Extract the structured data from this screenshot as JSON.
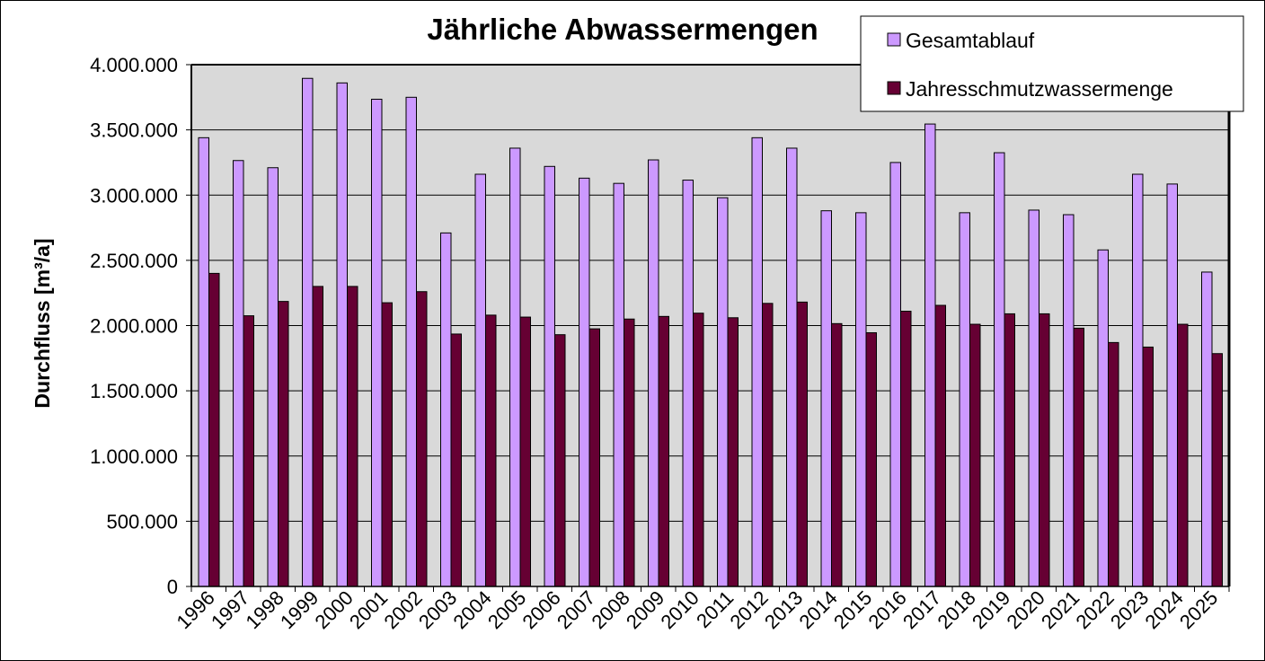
{
  "chart_data": {
    "type": "bar",
    "title": "Jährliche Abwassermengen",
    "xlabel": "",
    "ylabel": "Durchfluss  [m³/a]",
    "ylim": [
      0,
      4000000
    ],
    "yticks": [
      "0",
      "500.000",
      "1.000.000",
      "1.500.000",
      "2.000.000",
      "2.500.000",
      "3.000.000",
      "3.500.000",
      "4.000.000"
    ],
    "grid": true,
    "legend_position": "top-right",
    "categories": [
      "1996",
      "1997",
      "1998",
      "1999",
      "2000",
      "2001",
      "2002",
      "2003",
      "2004",
      "2005",
      "2006",
      "2007",
      "2008",
      "2009",
      "2010",
      "2011",
      "2012",
      "2013",
      "2014",
      "2015",
      "2016",
      "2017",
      "2018",
      "2019",
      "2020",
      "2021",
      "2022",
      "2023",
      "2024",
      "2025"
    ],
    "series": [
      {
        "name": "Gesamtablauf",
        "color": "#CC99FF",
        "values": [
          3440000,
          3265000,
          3210000,
          3895000,
          3860000,
          3735000,
          3750000,
          2710000,
          3160000,
          3360000,
          3220000,
          3130000,
          3090000,
          3270000,
          3115000,
          2980000,
          3440000,
          3360000,
          2880000,
          2865000,
          3250000,
          3545000,
          2865000,
          3325000,
          2885000,
          2850000,
          2580000,
          3160000,
          3085000,
          2410000
        ]
      },
      {
        "name": "Jahresschmutzwassermenge",
        "color": "#660033",
        "values": [
          2400000,
          2075000,
          2185000,
          2300000,
          2300000,
          2175000,
          2260000,
          1935000,
          2080000,
          2065000,
          1930000,
          1975000,
          2050000,
          2070000,
          2095000,
          2060000,
          2170000,
          2180000,
          2015000,
          1945000,
          2110000,
          2155000,
          2010000,
          2090000,
          2090000,
          1980000,
          1870000,
          1835000,
          2010000,
          1785000
        ]
      }
    ]
  }
}
